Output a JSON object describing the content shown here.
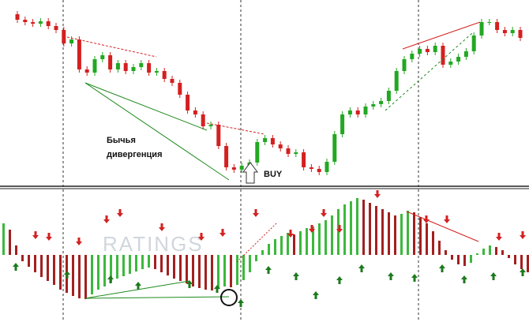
{
  "annotation": [
    "Бычья",
    "дивергенция"
  ],
  "signal": "BUY",
  "watermark": "RATINGS",
  "chart_data": [
    {
      "type": "candlestick",
      "up_color": "#22a822",
      "down_color": "#d42020",
      "ylim": [
        0,
        236
      ],
      "open": [
        218,
        211,
        208,
        206,
        209,
        203,
        198,
        181,
        186,
        148,
        144,
        161,
        166,
        148,
        156,
        146,
        151,
        156,
        144,
        146,
        136,
        131,
        116,
        96,
        91,
        76,
        78,
        51,
        24,
        21,
        26,
        30,
        56,
        61,
        53,
        48,
        41,
        43,
        24,
        22,
        18,
        31,
        66,
        91,
        96,
        91,
        101,
        104,
        108,
        121,
        146,
        161,
        168,
        174,
        170,
        178,
        154,
        158,
        164,
        171,
        191,
        208,
        208,
        198,
        194,
        198
      ],
      "close": [
        211,
        208,
        206,
        209,
        203,
        198,
        181,
        186,
        148,
        144,
        161,
        166,
        148,
        156,
        146,
        151,
        156,
        144,
        146,
        136,
        131,
        116,
        96,
        91,
        76,
        78,
        51,
        24,
        21,
        26,
        30,
        56,
        61,
        53,
        48,
        41,
        43,
        24,
        22,
        18,
        31,
        66,
        91,
        96,
        91,
        101,
        104,
        108,
        121,
        146,
        161,
        168,
        174,
        170,
        178,
        154,
        158,
        164,
        171,
        191,
        208,
        208,
        198,
        194,
        198,
        188
      ],
      "high": [
        222,
        215,
        212,
        213,
        213,
        207,
        202,
        190,
        190,
        152,
        165,
        170,
        170,
        160,
        160,
        155,
        160,
        160,
        150,
        150,
        140,
        135,
        120,
        100,
        95,
        82,
        82,
        55,
        28,
        30,
        34,
        60,
        65,
        65,
        57,
        52,
        47,
        47,
        28,
        26,
        35,
        70,
        95,
        100,
        100,
        105,
        108,
        112,
        125,
        150,
        165,
        172,
        178,
        178,
        182,
        182,
        162,
        168,
        175,
        195,
        212,
        212,
        212,
        202,
        202,
        202
      ],
      "low": [
        207,
        204,
        202,
        202,
        199,
        194,
        177,
        177,
        144,
        140,
        140,
        157,
        144,
        144,
        142,
        142,
        147,
        140,
        140,
        132,
        127,
        112,
        92,
        87,
        72,
        72,
        47,
        20,
        17,
        17,
        22,
        26,
        52,
        49,
        44,
        37,
        37,
        20,
        18,
        14,
        14,
        27,
        62,
        87,
        87,
        87,
        97,
        100,
        104,
        117,
        142,
        157,
        164,
        166,
        166,
        150,
        150,
        154,
        160,
        167,
        187,
        204,
        194,
        190,
        190,
        184
      ]
    },
    {
      "type": "histogram",
      "up_color": "#3cb83c",
      "down_color": "#a32020",
      "ylim": [
        -85,
        83
      ],
      "values": [
        40,
        32,
        12,
        -8,
        -15,
        -22,
        -28,
        -33,
        -38,
        -44,
        -48,
        -52,
        -55,
        -56,
        -50,
        -44,
        -40,
        -35,
        -30,
        -27,
        -24,
        -21,
        -18,
        -16,
        -18,
        -22,
        -26,
        -30,
        -33,
        -36,
        -40,
        -42,
        -44,
        -45,
        -42,
        -40,
        -41,
        -38,
        -32,
        -22,
        -8,
        6,
        14,
        20,
        24,
        28,
        26,
        30,
        34,
        36,
        40,
        44,
        50,
        58,
        64,
        68,
        72,
        70,
        66,
        62,
        58,
        54,
        50,
        52,
        56,
        54,
        48,
        40,
        30,
        18,
        6,
        -6,
        -12,
        -14,
        -10,
        2,
        8,
        12,
        10,
        6,
        -4,
        -12,
        -18,
        -22
      ]
    }
  ]
}
